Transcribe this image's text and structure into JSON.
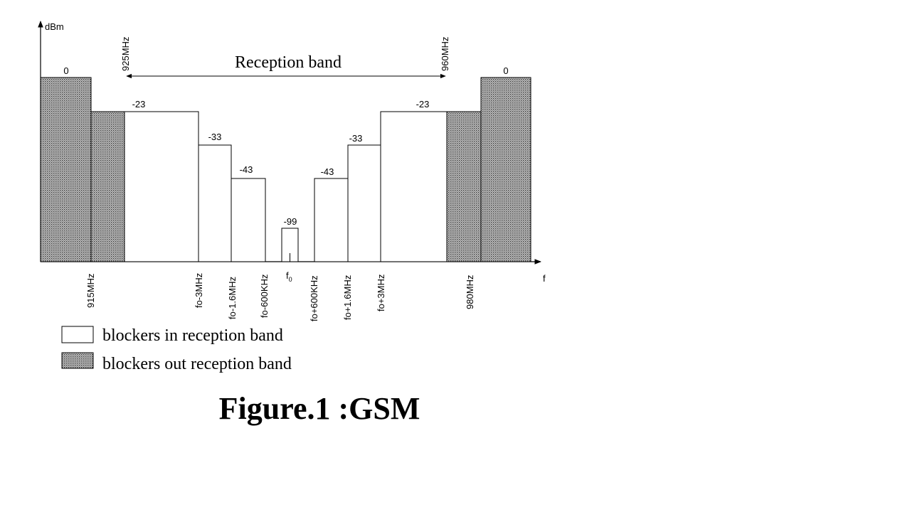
{
  "axes": {
    "y_label": "dBm",
    "x_label": "f"
  },
  "reception_band": {
    "label": "Reception band",
    "start_label": "925MHz",
    "end_label": "960MHz"
  },
  "bars": [
    {
      "id": "out-left-high",
      "level": "0",
      "style": "out_band"
    },
    {
      "id": "out-left-low",
      "level": "",
      "style": "out_band"
    },
    {
      "id": "in-left-1",
      "level": "-23",
      "style": "in_band"
    },
    {
      "id": "in-left-2",
      "level": "-33",
      "style": "in_band"
    },
    {
      "id": "in-left-3",
      "level": "-43",
      "style": "in_band"
    },
    {
      "id": "signal",
      "level": "-99",
      "style": "in_band"
    },
    {
      "id": "in-right-3",
      "level": "-43",
      "style": "in_band"
    },
    {
      "id": "in-right-2",
      "level": "-33",
      "style": "in_band"
    },
    {
      "id": "in-right-1",
      "level": "-23",
      "style": "in_band"
    },
    {
      "id": "out-right-low",
      "level": "",
      "style": "out_band"
    },
    {
      "id": "out-right-high",
      "level": "0",
      "style": "out_band"
    }
  ],
  "freq_labels": {
    "f915": "915MHz",
    "fo_m3": "fo-3MHz",
    "fo_m16": "fo-1.6MHz",
    "fo_m600": "fo-600KHz",
    "f0_main": "f",
    "f0_sub": "0",
    "fo_p600": "fo+600KHz",
    "fo_p16": "fo+1.6MHz",
    "fo_p3": "fo+3MHz",
    "f980": "980MHz"
  },
  "legend": {
    "in_band": "blockers in reception band",
    "out_band": "blockers out reception band"
  },
  "caption": "Figure.1 :GSM",
  "colors": {
    "line": "#000000",
    "hatch_bg": "#c8c8c8",
    "hatch_dot": "#3a3a3a"
  }
}
